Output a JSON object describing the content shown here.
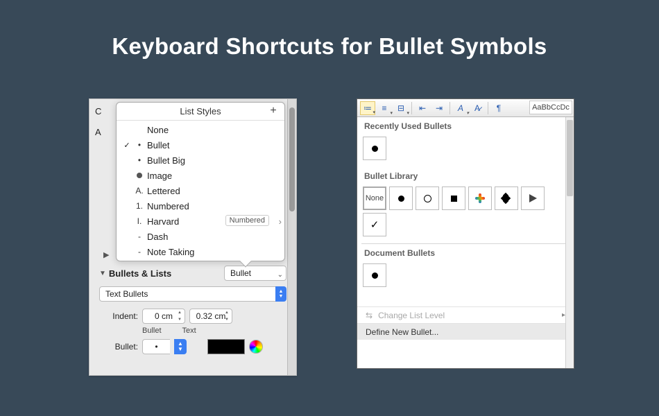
{
  "title": "Keyboard Shortcuts for Bullet Symbols",
  "colors": {
    "page_bg": "#384958",
    "title_color": "#ffffff"
  },
  "mac_panel": {
    "popover_title": "List Styles",
    "add_glyph": "+",
    "items": [
      {
        "checked": false,
        "marker": "",
        "label": "None"
      },
      {
        "checked": true,
        "marker": "•",
        "label": "Bullet"
      },
      {
        "checked": false,
        "marker": "•",
        "label": "Bullet Big"
      },
      {
        "checked": false,
        "marker": "●",
        "label": "Image",
        "img_dot": true
      },
      {
        "checked": false,
        "marker": "A.",
        "label": "Lettered"
      },
      {
        "checked": false,
        "marker": "1.",
        "label": "Numbered"
      },
      {
        "checked": false,
        "marker": "I.",
        "label": "Harvard",
        "badge": "Numbered",
        "chevron": true
      },
      {
        "checked": false,
        "marker": "-",
        "label": "Dash"
      },
      {
        "checked": false,
        "marker": "-",
        "label": "Note Taking"
      }
    ],
    "section_title": "Bullets & Lists",
    "section_dropdown_value": "Bullet",
    "type_select_value": "Text Bullets",
    "indent_label": "Indent:",
    "indent_bullet_value": "0 cm",
    "indent_text_value": "0.32 cm",
    "indent_col_bullet": "Bullet",
    "indent_col_text": "Text",
    "bullet_label": "Bullet:",
    "bullet_char_value": "•",
    "bullet_color": "#000000",
    "crop_letter_top": "C",
    "crop_letter_a": "A"
  },
  "win_panel": {
    "ribbon": {
      "bullets_active": true,
      "style_preview": "AaBbCcDc"
    },
    "groups": {
      "recent_title": "Recently Used Bullets",
      "recent": [
        {
          "kind": "dot"
        }
      ],
      "library_title": "Bullet Library",
      "library": [
        {
          "kind": "none",
          "label": "None"
        },
        {
          "kind": "dot"
        },
        {
          "kind": "ring"
        },
        {
          "kind": "square"
        },
        {
          "kind": "fourstar"
        },
        {
          "kind": "diamond4"
        },
        {
          "kind": "arrow"
        },
        {
          "kind": "check"
        }
      ],
      "doc_title": "Document Bullets",
      "doc": [
        {
          "kind": "dot"
        }
      ]
    },
    "menu": {
      "change_level": "Change List Level",
      "define_new": "Define New Bullet..."
    }
  }
}
